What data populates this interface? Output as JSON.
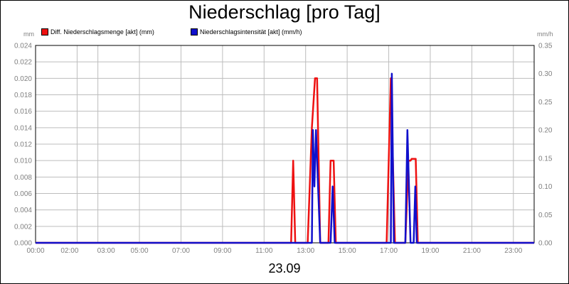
{
  "title": "Niederschlag [pro Tag]",
  "date_label": "23.09",
  "colors": {
    "background": "#ffffff",
    "grid": "#bdbdbd",
    "tick_text": "#808080",
    "plot_border": "#000000"
  },
  "chart_data": {
    "type": "line",
    "title": "Niederschlag [pro Tag]",
    "xlabel": "23.09",
    "ylabel_left": "mm",
    "ylabel_right": "mm/h",
    "x_unit": "hours",
    "xlim": [
      0,
      24
    ],
    "x_ticks": [
      {
        "x": 0,
        "label": "00:00"
      },
      {
        "x": 2,
        "label": "02:00"
      },
      {
        "x": 3,
        "label": "03:00"
      },
      {
        "x": 5,
        "label": "05:00"
      },
      {
        "x": 7,
        "label": "07:00"
      },
      {
        "x": 9,
        "label": "09:00"
      },
      {
        "x": 11,
        "label": "11:00"
      },
      {
        "x": 13,
        "label": "13:00"
      },
      {
        "x": 15,
        "label": "15:00"
      },
      {
        "x": 17,
        "label": "17:00"
      },
      {
        "x": 19,
        "label": "19:00"
      },
      {
        "x": 21,
        "label": "21:00"
      },
      {
        "x": 23,
        "label": "23:00"
      }
    ],
    "ylim_left": [
      0,
      0.024
    ],
    "ylim_right": [
      0,
      0.35
    ],
    "y_ticks_left": [
      "0.000",
      "0.002",
      "0.004",
      "0.006",
      "0.008",
      "0.010",
      "0.012",
      "0.014",
      "0.016",
      "0.018",
      "0.020",
      "0.022",
      "0.024"
    ],
    "y_ticks_right": [
      "0.00",
      "0.05",
      "0.10",
      "0.15",
      "0.20",
      "0.25",
      "0.30",
      "0.35"
    ],
    "grid": true,
    "legend_position": "top-left",
    "series": [
      {
        "name": "Diff. Niederschlagsmenge [akt] (mm)",
        "axis": "left",
        "color": "#ee1111",
        "points": [
          [
            0,
            0
          ],
          [
            12.3,
            0
          ],
          [
            12.4,
            0.01
          ],
          [
            12.5,
            0
          ],
          [
            13.1,
            0
          ],
          [
            13.3,
            0.014
          ],
          [
            13.45,
            0.02
          ],
          [
            13.55,
            0.02
          ],
          [
            13.7,
            0
          ],
          [
            14.1,
            0
          ],
          [
            14.2,
            0.01
          ],
          [
            14.35,
            0.01
          ],
          [
            14.45,
            0
          ],
          [
            16.9,
            0
          ],
          [
            17.1,
            0.02
          ],
          [
            17.3,
            0
          ],
          [
            17.8,
            0
          ],
          [
            17.95,
            0.01
          ],
          [
            18.05,
            0.01
          ],
          [
            18.1,
            0.0102
          ],
          [
            18.3,
            0.0102
          ],
          [
            18.4,
            0
          ],
          [
            24,
            0
          ]
        ]
      },
      {
        "name": "Niederschlagsintensität [akt] (mm/h)",
        "axis": "right",
        "color": "#1010cc",
        "points": [
          [
            0,
            0
          ],
          [
            13.3,
            0
          ],
          [
            13.35,
            0.2
          ],
          [
            13.42,
            0.1
          ],
          [
            13.5,
            0.2
          ],
          [
            13.6,
            0.1
          ],
          [
            13.7,
            0
          ],
          [
            14.2,
            0
          ],
          [
            14.3,
            0.1
          ],
          [
            14.4,
            0
          ],
          [
            17.1,
            0
          ],
          [
            17.15,
            0.3
          ],
          [
            17.25,
            0
          ],
          [
            17.8,
            0
          ],
          [
            17.9,
            0.2
          ],
          [
            18.05,
            0
          ],
          [
            18.2,
            0
          ],
          [
            18.28,
            0.1
          ],
          [
            18.35,
            0
          ],
          [
            24,
            0
          ]
        ]
      }
    ]
  }
}
